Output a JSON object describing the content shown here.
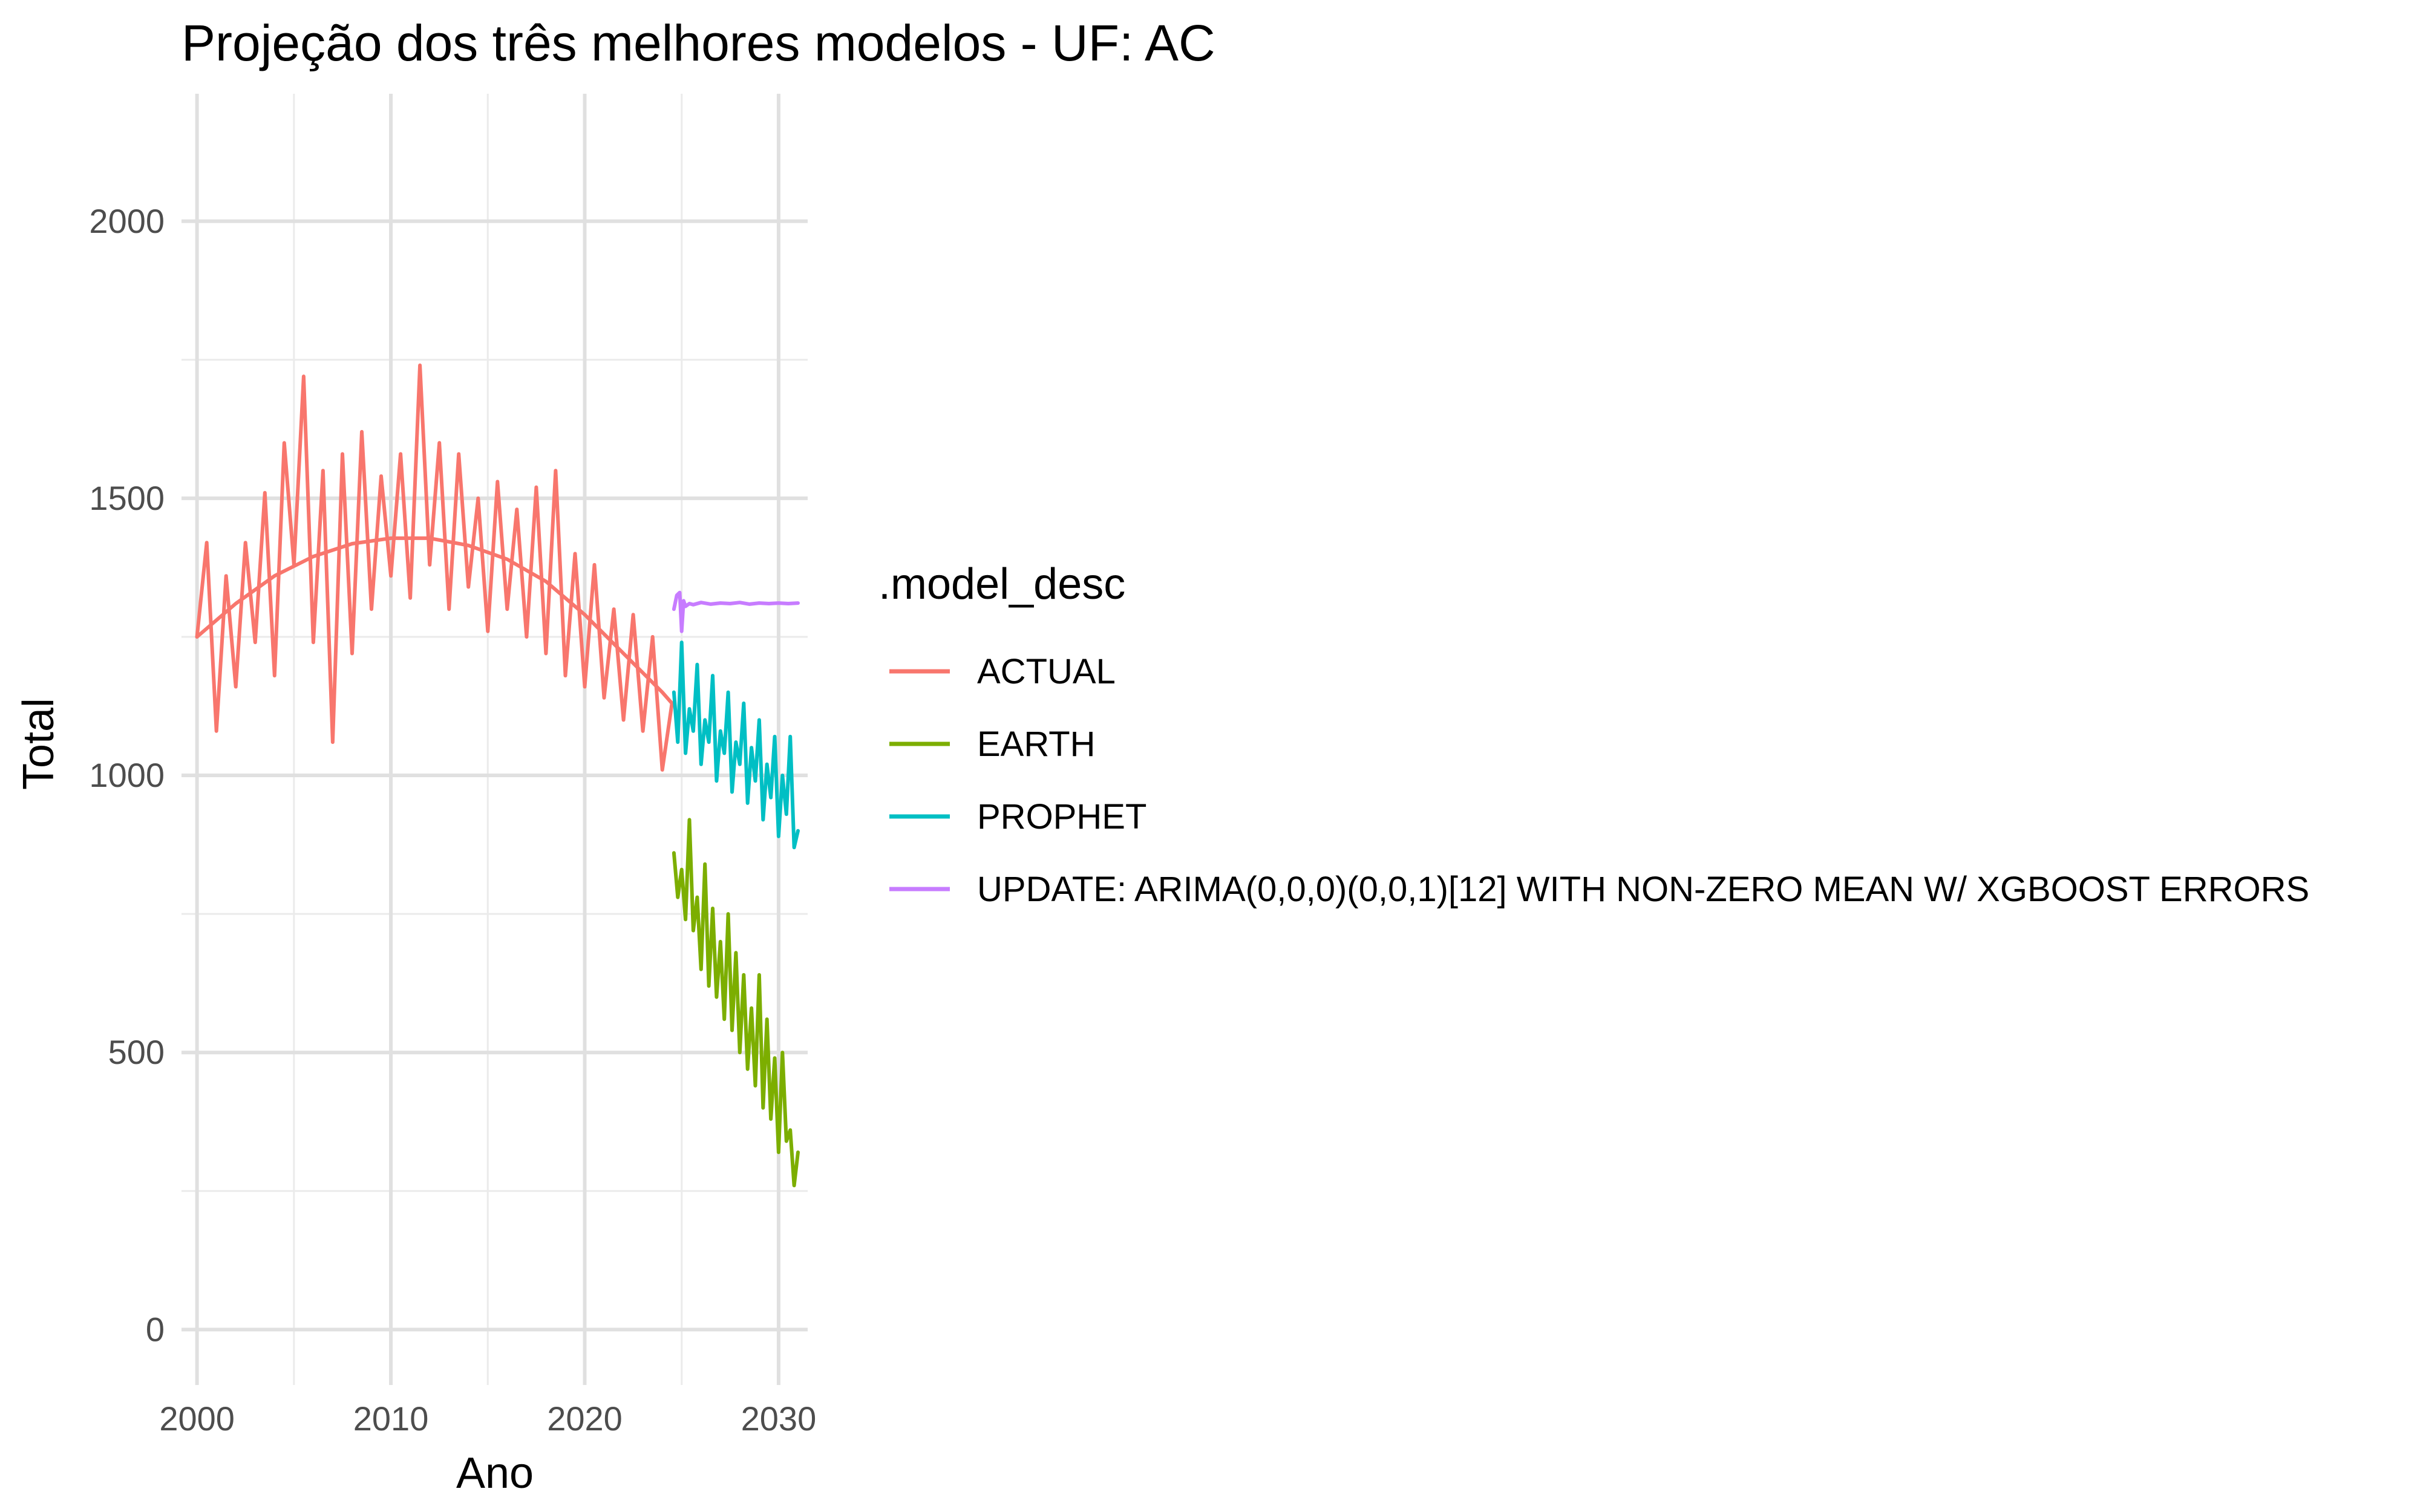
{
  "chart_data": {
    "type": "line",
    "title": "Projeção dos três melhores modelos - UF: AC",
    "xlabel": "Ano",
    "ylabel": "Total",
    "xlim": [
      1999.2,
      2031.5
    ],
    "ylim": [
      -100,
      2230
    ],
    "x_ticks": [
      2000,
      2010,
      2020,
      2030
    ],
    "x_tick_labels": [
      "2000",
      "2010",
      "2020",
      "2030"
    ],
    "y_ticks": [
      0,
      500,
      1000,
      1500,
      2000
    ],
    "y_tick_labels": [
      "0",
      "500",
      "1000",
      "1500",
      "2000"
    ],
    "grid": true,
    "legend": {
      "title": ".model_desc",
      "position": "right",
      "entries": [
        {
          "label": "ACTUAL",
          "color": "#F8766D"
        },
        {
          "label": "EARTH",
          "color": "#7CAE00"
        },
        {
          "label": "PROPHET",
          "color": "#00BFC4"
        },
        {
          "label": "UPDATE: ARIMA(0,0,0)(0,0,1)[12] WITH NON-ZERO MEAN W/ XGBOOST ERRORS",
          "color": "#C77CFF"
        }
      ]
    },
    "series": [
      {
        "name": "ACTUAL",
        "color": "#F8766D",
        "x": [
          2000.0,
          2000.5,
          2001.0,
          2001.5,
          2002.0,
          2002.5,
          2003.0,
          2003.5,
          2004.0,
          2004.5,
          2005.0,
          2005.5,
          2006.0,
          2006.5,
          2007.0,
          2007.5,
          2008.0,
          2008.5,
          2009.0,
          2009.5,
          2010.0,
          2010.5,
          2011.0,
          2011.5,
          2012.0,
          2012.5,
          2013.0,
          2013.5,
          2014.0,
          2014.5,
          2015.0,
          2015.5,
          2016.0,
          2016.5,
          2017.0,
          2017.5,
          2018.0,
          2018.5,
          2019.0,
          2019.5,
          2020.0,
          2020.5,
          2021.0,
          2021.5,
          2022.0,
          2022.5,
          2023.0,
          2023.5,
          2024.0,
          2024.5
        ],
        "values": [
          1250,
          1420,
          1080,
          1360,
          1160,
          1420,
          1240,
          1510,
          1180,
          1600,
          1380,
          1720,
          1240,
          1550,
          1060,
          1580,
          1220,
          1620,
          1300,
          1540,
          1360,
          1580,
          1320,
          1740,
          1380,
          1600,
          1300,
          1580,
          1340,
          1500,
          1260,
          1530,
          1300,
          1480,
          1250,
          1520,
          1220,
          1550,
          1180,
          1400,
          1160,
          1380,
          1140,
          1300,
          1100,
          1290,
          1080,
          1250,
          1010,
          1130
        ]
      },
      {
        "name": "ACTUAL",
        "color": "#F8766D",
        "x": [
          2000.0,
          2002.0,
          2004.0,
          2006.0,
          2008.0,
          2010.0,
          2012.0,
          2014.0,
          2016.0,
          2018.0,
          2020.0,
          2022.0,
          2024.0,
          2024.5
        ],
        "values": [
          1250,
          1310,
          1360,
          1395,
          1418,
          1428,
          1428,
          1415,
          1390,
          1350,
          1290,
          1220,
          1150,
          1130
        ]
      },
      {
        "name": "EARTH",
        "color": "#7CAE00",
        "x": [
          2024.6,
          2024.8,
          2025.0,
          2025.2,
          2025.4,
          2025.6,
          2025.8,
          2026.0,
          2026.2,
          2026.4,
          2026.6,
          2026.8,
          2027.0,
          2027.2,
          2027.4,
          2027.6,
          2027.8,
          2028.0,
          2028.2,
          2028.4,
          2028.6,
          2028.8,
          2029.0,
          2029.2,
          2029.4,
          2029.6,
          2029.8,
          2030.0,
          2030.2,
          2030.4,
          2030.6,
          2030.8,
          2031.0
        ],
        "values": [
          860,
          780,
          830,
          740,
          920,
          720,
          780,
          650,
          840,
          620,
          760,
          600,
          700,
          560,
          750,
          540,
          680,
          500,
          640,
          470,
          580,
          440,
          640,
          400,
          560,
          380,
          490,
          320,
          500,
          340,
          360,
          260,
          320
        ]
      },
      {
        "name": "PROPHET",
        "color": "#00BFC4",
        "x": [
          2024.6,
          2024.8,
          2025.0,
          2025.2,
          2025.4,
          2025.6,
          2025.8,
          2026.0,
          2026.2,
          2026.4,
          2026.6,
          2026.8,
          2027.0,
          2027.2,
          2027.4,
          2027.6,
          2027.8,
          2028.0,
          2028.2,
          2028.4,
          2028.6,
          2028.8,
          2029.0,
          2029.2,
          2029.4,
          2029.6,
          2029.8,
          2030.0,
          2030.2,
          2030.4,
          2030.6,
          2030.8,
          2031.0
        ],
        "values": [
          1150,
          1060,
          1240,
          1040,
          1120,
          1080,
          1200,
          1020,
          1100,
          1060,
          1180,
          990,
          1080,
          1040,
          1150,
          970,
          1060,
          1020,
          1130,
          950,
          1050,
          990,
          1100,
          920,
          1020,
          960,
          1070,
          890,
          1000,
          930,
          1070,
          870,
          900
        ]
      },
      {
        "name": "UPDATE: ARIMA(0,0,0)(0,0,1)[12] WITH NON-ZERO MEAN W/ XGBOOST ERRORS",
        "color": "#C77CFF",
        "x": [
          2024.6,
          2024.75,
          2024.9,
          2025.0,
          2025.1,
          2025.2,
          2025.4,
          2025.6,
          2026.0,
          2026.5,
          2027.0,
          2027.5,
          2028.0,
          2028.5,
          2029.0,
          2029.5,
          2030.0,
          2030.5,
          2031.0
        ],
        "values": [
          1300,
          1325,
          1330,
          1260,
          1315,
          1305,
          1310,
          1308,
          1312,
          1309,
          1311,
          1310,
          1312,
          1309,
          1311,
          1310,
          1311,
          1310,
          1311
        ]
      }
    ]
  }
}
